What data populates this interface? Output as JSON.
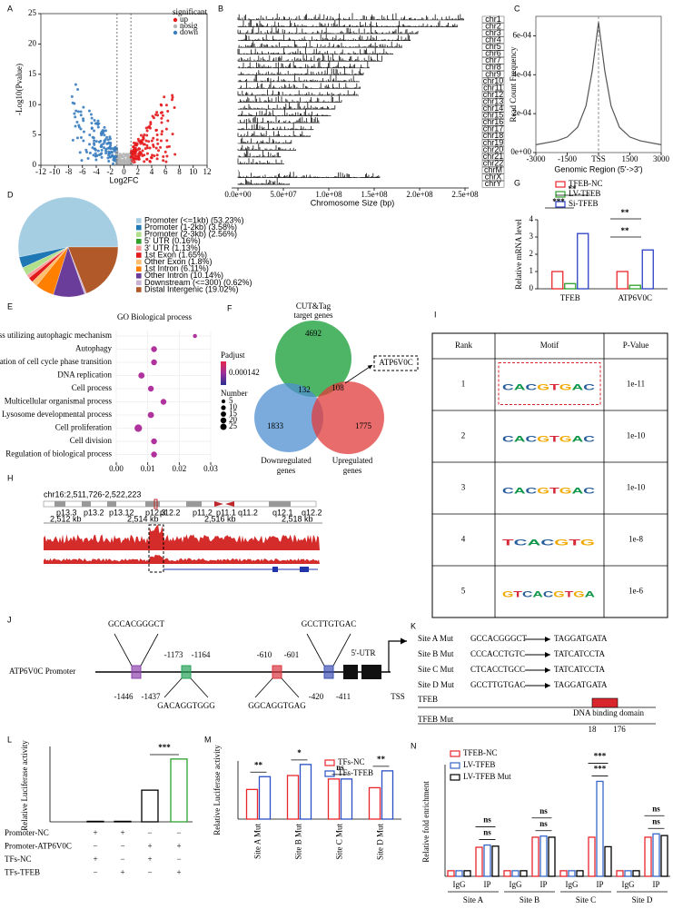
{
  "panel_labels": [
    "A",
    "B",
    "C",
    "D",
    "E",
    "F",
    "G",
    "H",
    "I",
    "J",
    "K",
    "L",
    "M",
    "N"
  ],
  "chart_data": [
    {
      "type": "volcano",
      "xlabel": "Log2FC",
      "ylabel": "-Log10(Pvalue)",
      "xlim": [
        -12,
        12
      ],
      "ylim": [
        0,
        25
      ],
      "xticks": [
        -12,
        -10,
        -8,
        -6,
        -4,
        -2,
        0,
        2,
        4,
        6,
        8,
        10,
        12
      ],
      "yticks": [
        0,
        5,
        10,
        15,
        20,
        25
      ],
      "thresholds": [
        -1,
        1
      ],
      "legend_title": "significant",
      "series": [
        {
          "name": "up",
          "color": "#e41a1c"
        },
        {
          "name": "nosig",
          "color": "#b5b5b5"
        },
        {
          "name": "down",
          "color": "#3b7ec0"
        }
      ]
    },
    {
      "type": "coverage",
      "xlabel": "Chromosome Size (bp)",
      "color": "#111111",
      "categories": [
        "chr1",
        "chr2",
        "chr3",
        "chr4",
        "chr5",
        "chr6",
        "chr7",
        "chr8",
        "chr9",
        "chr10",
        "chr11",
        "chr12",
        "chr13",
        "chr14",
        "chr15",
        "chr16",
        "chr17",
        "chr18",
        "chr19",
        "chr20",
        "chr21",
        "chr22",
        "chrM",
        "chrX",
        "chrY"
      ],
      "values": [
        249000000,
        242000000,
        198000000,
        190000000,
        181000000,
        171000000,
        159000000,
        145000000,
        138000000,
        134000000,
        135000000,
        133000000,
        114000000,
        107000000,
        102000000,
        90000000,
        83000000,
        80000000,
        59000000,
        64000000,
        47000000,
        51000000,
        1000000,
        156000000,
        57000000
      ],
      "xlim": [
        0,
        250000000
      ],
      "xticks": [
        {
          "value": 0,
          "label": "0.0e+00"
        },
        {
          "value": 50000000,
          "label": "5.0e+07"
        },
        {
          "value": 100000000,
          "label": "1.0e+08"
        },
        {
          "value": 150000000,
          "label": "1.5e+08"
        },
        {
          "value": 200000000,
          "label": "2.0e+08"
        },
        {
          "value": 250000000,
          "label": "2.5e+08"
        }
      ]
    },
    {
      "type": "line",
      "xlabel": "Genomic Region (5'->3')",
      "ylabel": "Read Count Frequency",
      "color": "#555555",
      "x": [
        -3000,
        -2000,
        -1500,
        -1000,
        -600,
        -300,
        0,
        300,
        600,
        1000,
        1500,
        2000,
        3000
      ],
      "values": [
        4e-05,
        6e-05,
        8e-05,
        0.00013,
        0.00024,
        0.00042,
        0.00067,
        0.00042,
        0.00024,
        0.00013,
        8e-05,
        6e-05,
        4e-05
      ],
      "xlim": [
        -3000,
        3000
      ],
      "ylim": [
        0,
        0.0007
      ],
      "xticks": [
        -3000,
        -1500,
        {
          "value": 0,
          "label": "TSS"
        },
        1500,
        3000
      ],
      "yticks": [
        {
          "value": 0,
          "label": "0e+00"
        },
        {
          "value": 0.0002,
          "label": "2e-04"
        },
        {
          "value": 0.0004,
          "label": "4e-04"
        },
        {
          "value": 0.0006,
          "label": "6e-04"
        }
      ]
    },
    {
      "type": "pie",
      "categories": [
        "Promoter (<=1kb) (53.23%)",
        "Promoter (1-2kb) (3.58%)",
        "Promoter (2-3kb) (2.56%)",
        "5' UTR (0.16%)",
        "3' UTR (1.13%)",
        "1st Exon (1.65%)",
        "Other Exon (1.8%)",
        "1st Intron (6.11%)",
        "Other Intron (10.14%)",
        "Downstream (<=300) (0.62%)",
        "Distal Intergenic (19.02%)"
      ],
      "values": [
        53.23,
        3.58,
        2.56,
        0.16,
        1.13,
        1.65,
        1.8,
        6.11,
        10.14,
        0.62,
        19.02
      ],
      "colors": [
        "#a6cee3",
        "#1f78b4",
        "#b2df8a",
        "#33a02c",
        "#fb9a99",
        "#e31a1c",
        "#fdbf6f",
        "#ff7f00",
        "#6a3d9a",
        "#cab2d6",
        "#b15928"
      ]
    },
    {
      "type": "dot",
      "title": "GO Biological process",
      "categories": [
        "Process utilizing autophagic mechanism",
        "Autophagy",
        "Regulation of cell cycle phase transition",
        "DNA replication",
        "Cell process",
        "Multicellular organismal process",
        "Lysosome developmental process",
        "Cell proliferation",
        "Cell division",
        "Regulation of biological process"
      ],
      "values": [
        0.025,
        0.012,
        0.012,
        0.008,
        0.011,
        0.015,
        0.011,
        0.007,
        0.012,
        0.012
      ],
      "sizes": [
        3,
        10,
        10,
        12,
        10,
        10,
        12,
        20,
        10,
        10
      ],
      "xlim": [
        0,
        0.03
      ],
      "xticks": [
        {
          "value": 0,
          "label": "0.00"
        },
        {
          "value": 0.01,
          "label": "0.01"
        },
        {
          "value": 0.02,
          "label": "0.02"
        },
        {
          "value": 0.03,
          "label": "0.03"
        }
      ],
      "color": "#b0329c",
      "color_title": "Padjust",
      "color_label": "0.000142",
      "size_title": "Number",
      "size_legend": [
        5,
        10,
        15,
        20,
        25
      ]
    },
    {
      "type": "bar",
      "ylabel": "Relative mRNA level",
      "categories": [
        "TFEB",
        "ATP6V0C"
      ],
      "series": [
        {
          "name": "TFEB-NC",
          "color": "#e8262c",
          "values": [
            1,
            1
          ]
        },
        {
          "name": "LV-TFEB",
          "color": "#2ca02c",
          "values": [
            0.3,
            0.2
          ]
        },
        {
          "name": "Si-TFEB",
          "color": "#2b3fc4",
          "values": [
            3.2,
            2.25
          ]
        }
      ],
      "ylim": [
        0,
        4
      ],
      "yticks": [
        0,
        1,
        2,
        3,
        4
      ],
      "annotations": [
        "**",
        "***",
        "**",
        "**"
      ]
    },
    {
      "type": "bar",
      "ylabel": "Relative Luciferase activity",
      "values": [
        0.1,
        0.1,
        6.3,
        12.5
      ],
      "colors": [
        "#000000",
        "#000000",
        "#000000",
        "#2ca02c"
      ],
      "ylim": [
        0,
        15
      ],
      "annotations": [
        "***"
      ],
      "conditions": [
        {
          "name": "Promoter-NC",
          "signs": [
            "+",
            "+",
            "−",
            "−"
          ]
        },
        {
          "name": "Promoter-ATP6V0C",
          "signs": [
            "−",
            "−",
            "+",
            "+"
          ]
        },
        {
          "name": "TFs-NC",
          "signs": [
            "+",
            "−",
            "+",
            "−"
          ]
        },
        {
          "name": "TFs-TFEB",
          "signs": [
            "−",
            "+",
            "−",
            "+"
          ]
        }
      ]
    },
    {
      "type": "bar",
      "ylabel": "Relative Luciferase activity",
      "categories": [
        "Site A Mut",
        "Site B Mut",
        "Site C Mut",
        "Site D Mut"
      ],
      "series": [
        {
          "name": "TFs-NC",
          "color": "#e8262c",
          "values": [
            5.1,
            7.5,
            6.9,
            5.4
          ]
        },
        {
          "name": "TFs-TFEB",
          "color": "#2b4fc4",
          "values": [
            7.3,
            9.4,
            6.9,
            8.3
          ]
        }
      ],
      "ylim": [
        0,
        10
      ],
      "annotations": [
        "**",
        "*",
        "ns",
        "**"
      ]
    },
    {
      "type": "bar",
      "ylabel": "Relative fold enrichment",
      "categories": [
        "IgG",
        "IP",
        "IgG",
        "IP",
        "IgG",
        "IP",
        "IgG",
        "IP"
      ],
      "groups": [
        "Site A",
        "Site B",
        "Site C",
        "Site D"
      ],
      "series": [
        {
          "name": "TFEB-NC",
          "color": "#e8262c",
          "values": [
            1,
            5.2,
            1,
            7.0,
            1,
            7.0,
            1,
            7.0
          ]
        },
        {
          "name": "LV-TFEB",
          "color": "#3566c8",
          "values": [
            1,
            5.6,
            1,
            7.2,
            1,
            17.0,
            1,
            7.6
          ]
        },
        {
          "name": "LV-TFEB Mut",
          "color": "#000000",
          "values": [
            1,
            5.4,
            1,
            7.0,
            1,
            5.3,
            1,
            7.3
          ]
        }
      ],
      "ylim": [
        0,
        20
      ],
      "annotations": [
        [
          "ns",
          "ns"
        ],
        [
          "ns",
          "ns"
        ],
        [
          "***",
          "***"
        ],
        [
          "ns",
          "ns"
        ]
      ]
    }
  ],
  "venn": {
    "title": [
      "CUT&Tag",
      "target genes"
    ],
    "down_label": [
      "Downregulated",
      "genes"
    ],
    "up_label": [
      "Upregulated",
      "genes"
    ],
    "target_only": 4692,
    "target_down": 132,
    "target_up": 108,
    "down_only": 1833,
    "up_only": 1775,
    "highlight": "ATP6V0C"
  },
  "genome_track": {
    "locus": "chr16:2,511,726-2,522,223",
    "bands": [
      "p13.3",
      "p13.2",
      "p13.12",
      "p12.3",
      "p12.2",
      "p11.2",
      "p11.1",
      "q11.2",
      "q12.1",
      "q12.2"
    ],
    "scale": [
      "2,512 kb",
      "2,514 kb",
      "2,516 kb",
      "2,518 kb"
    ]
  },
  "motif_table": {
    "header": [
      "Rank",
      "Motif",
      "P-Value"
    ],
    "rows": [
      [
        1,
        "CACGTGAC",
        "1e-11"
      ],
      [
        2,
        "CACGTGAC",
        "1e-10"
      ],
      [
        3,
        "CACGTGAC",
        "1e-10"
      ],
      [
        4,
        "TCACGTG",
        "1e-8"
      ],
      [
        5,
        "GTCACGTGA",
        "1e-6"
      ]
    ]
  },
  "promoter": {
    "label": "ATP6V0C Promoter",
    "sites": [
      {
        "seq": "GCCACGGGCT",
        "start": -1446,
        "end": -1437,
        "color": "#8e44ad"
      },
      {
        "seq": "GACAGGTGGG",
        "start": -1173,
        "end": -1164,
        "color": "#27a35a"
      },
      {
        "seq": "GGCAGGTGAG",
        "start": -610,
        "end": -601,
        "color": "#d9363e"
      },
      {
        "seq": "GCCTTGTGAC",
        "start": -420,
        "end": -411,
        "color": "#3f51b5"
      }
    ],
    "utr": "5'-UTR",
    "tss": "TSS"
  },
  "mutations": {
    "rows": [
      {
        "site": "Site A Mut",
        "original": "GCCACGGGCT",
        "mutant": "TAGGATGATA"
      },
      {
        "site": "Site B Mut",
        "original": "CCCACCTGTC",
        "mutant": "TATCATCCTA"
      },
      {
        "site": "Site C Mut",
        "original": "CTCACCTGCC",
        "mutant": "TATCATCCTA"
      },
      {
        "site": "Site D Mut",
        "original": "GCCTTGTGAC",
        "mutant": "TAGGATGATA"
      }
    ],
    "tfeb": "TFEB",
    "tfeb_mut": "TFEB Mut",
    "domain": "DNA binding domain",
    "domain_start": 18,
    "domain_end": 176
  }
}
